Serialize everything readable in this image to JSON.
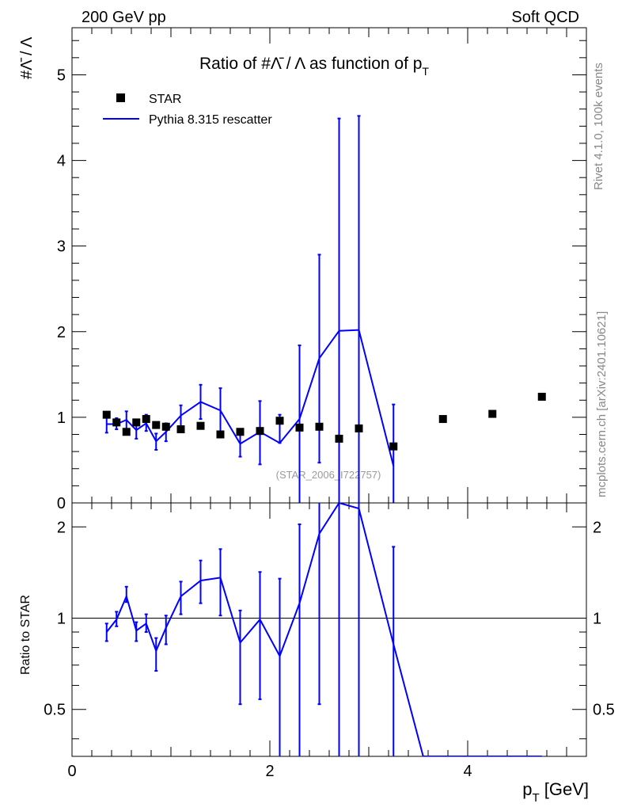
{
  "header": {
    "energy": "200 GeV pp",
    "process": "Soft QCD"
  },
  "side_labels": {
    "generator": "Rivet 4.1.0,  100k events",
    "site": "mcplots.cern.ch [arXiv:2401.10621]"
  },
  "chart_data": [
    {
      "type": "scatter",
      "panel": "main",
      "title_prefix": "Ratio of #",
      "title_sym1": "Λ̄",
      "title_mid": " / ",
      "title_sym2": "Λ",
      "title_suffix": " as function of p",
      "title_sub": "T",
      "ylabel": "#Λ̄ / Λ",
      "analysis_id": "(STAR_2006_I722757)",
      "xlim": [
        0,
        5.2
      ],
      "ylim": [
        0,
        5.55
      ],
      "yticks": [
        0,
        1,
        2,
        3,
        4,
        5
      ],
      "ytick_labels": [
        "0",
        "1",
        "2",
        "3",
        "4",
        "5"
      ],
      "legend": [
        {
          "label": "STAR",
          "marker": "square",
          "color": "#000000"
        },
        {
          "label": "Pythia 8.315 rescatter",
          "marker": "line",
          "color": "#0000ff"
        }
      ],
      "series": [
        {
          "name": "STAR",
          "x": [
            0.35,
            0.45,
            0.55,
            0.65,
            0.75,
            0.85,
            0.95,
            1.1,
            1.3,
            1.5,
            1.7,
            1.9,
            2.1,
            2.3,
            2.5,
            2.7,
            2.9,
            3.25,
            3.75,
            4.25,
            4.75
          ],
          "y": [
            1.03,
            0.94,
            0.83,
            0.94,
            0.98,
            0.91,
            0.89,
            0.86,
            0.9,
            0.8,
            0.83,
            0.84,
            0.96,
            0.88,
            0.89,
            0.75,
            0.87,
            0.66,
            0.98,
            1.04,
            1.24
          ]
        },
        {
          "name": "Pythia 8.315 rescatter",
          "x": [
            0.35,
            0.45,
            0.55,
            0.65,
            0.75,
            0.85,
            0.95,
            1.1,
            1.3,
            1.5,
            1.7,
            1.9,
            2.1,
            2.3,
            2.5,
            2.7,
            2.9,
            3.25
          ],
          "y": [
            0.92,
            0.92,
            0.97,
            0.85,
            0.93,
            0.72,
            0.83,
            1.02,
            1.18,
            1.08,
            0.69,
            0.83,
            0.7,
            0.98,
            1.69,
            2.01,
            2.02,
            0.43
          ],
          "yerr_low": [
            0.1,
            0.06,
            0.12,
            0.1,
            0.09,
            0.1,
            0.11,
            0.13,
            0.2,
            0.26,
            0.15,
            0.38,
            0.0,
            0.98,
            1.22,
            2.01,
            2.02,
            0.43
          ],
          "yerr_high": [
            0.1,
            0.07,
            0.1,
            0.1,
            0.1,
            0.09,
            0.1,
            0.12,
            0.2,
            0.26,
            0.15,
            0.36,
            0.33,
            0.86,
            1.21,
            2.48,
            2.5,
            0.72
          ]
        }
      ]
    },
    {
      "type": "line",
      "panel": "ratio",
      "ylabel": "Ratio to STAR",
      "xlabel": "p",
      "xlabel_sub": "T",
      "xlabel_unit": " [GeV]",
      "xlim": [
        0,
        5.2
      ],
      "ylim": [
        0.35,
        2.4
      ],
      "xticks": [
        0,
        2,
        4
      ],
      "xtick_labels": [
        "0",
        "2",
        "4"
      ],
      "yticks": [
        0.5,
        1,
        2
      ],
      "ytick_labels": [
        "0.5",
        "1",
        "2"
      ],
      "reference_line": 1,
      "series": [
        {
          "name": "Pythia 8.315 rescatter / STAR",
          "x": [
            0.35,
            0.45,
            0.55,
            0.65,
            0.75,
            0.85,
            0.95,
            1.1,
            1.3,
            1.5,
            1.7,
            1.9,
            2.1,
            2.3,
            2.5,
            2.7,
            2.9,
            3.25,
            3.55,
            3.75,
            4.25,
            4.75
          ],
          "y": [
            0.9,
            0.99,
            1.18,
            0.91,
            0.96,
            0.78,
            0.93,
            1.18,
            1.33,
            1.36,
            0.83,
            0.99,
            0.75,
            1.12,
            1.9,
            2.6,
            2.3,
            0.82,
            0.3,
            0.3,
            0.3,
            0.3
          ],
          "err_low": [
            0.06,
            0.05,
            0.05,
            0.07,
            0.06,
            0.11,
            0.11,
            0.15,
            0.21,
            0.34,
            0.31,
            0.45,
            0.5,
            1.0,
            1.38,
            2.5,
            2.3,
            0.82,
            0,
            0,
            0,
            0
          ],
          "err_high": [
            0.06,
            0.06,
            0.09,
            0.06,
            0.07,
            0.08,
            0.09,
            0.14,
            0.22,
            0.33,
            0.23,
            0.43,
            0.6,
            0.92,
            1.0,
            2.5,
            2.5,
            0.9,
            0,
            0,
            0,
            0
          ]
        }
      ]
    }
  ]
}
